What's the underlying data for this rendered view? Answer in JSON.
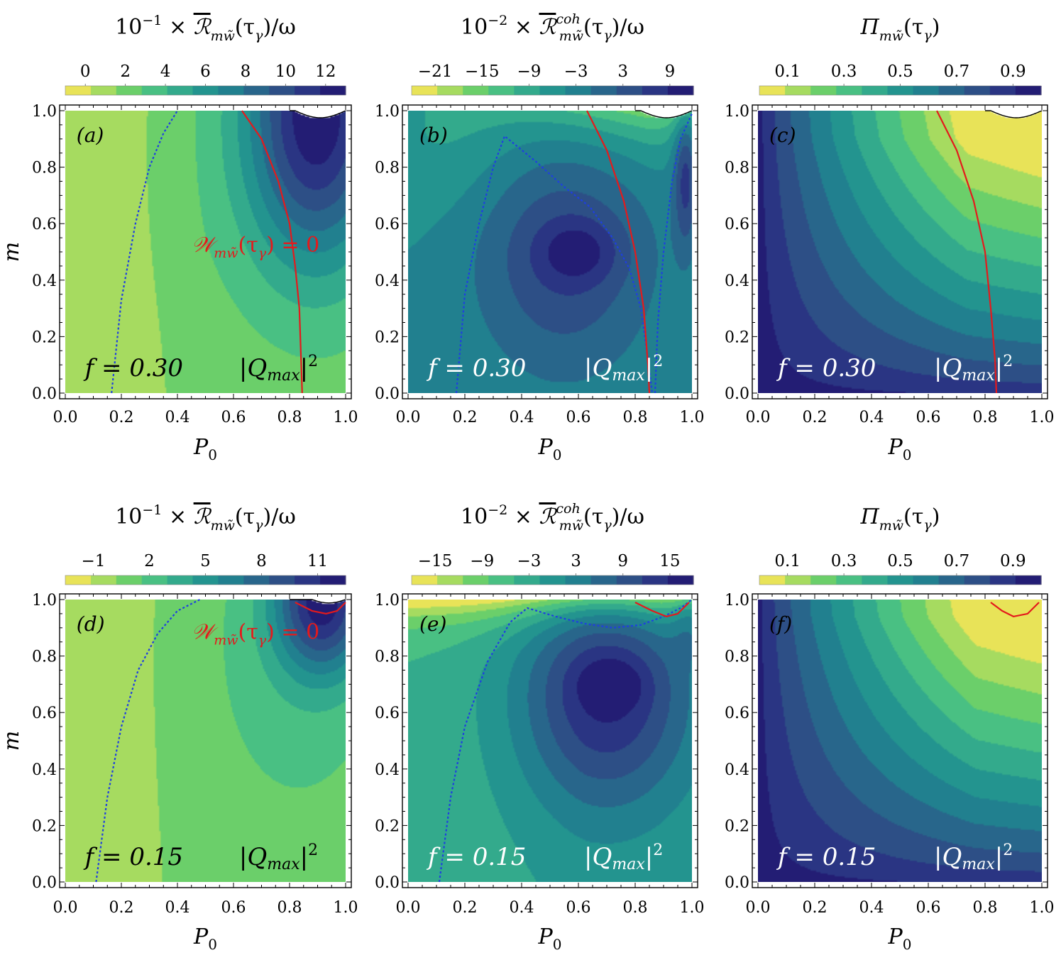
{
  "chart_data": [
    {
      "panel": "a",
      "type": "heatmap",
      "label": "(a)",
      "title": "10^{-1} × R̄_{mw̃}(τ_γ)/ω",
      "title_parts": {
        "prefix": "10",
        "exp": "−1",
        "mid": " × ",
        "sym": "ℛ",
        "sub": "mw̃",
        "sup": "",
        "suffix": "(τ",
        "suffix_sub": "γ",
        "suffix_end": ")/ω"
      },
      "colorbar": {
        "ticks": [
          "0",
          "2",
          "4",
          "6",
          "8",
          "10",
          "12"
        ],
        "tick_values": [
          0,
          2,
          4,
          6,
          8,
          10,
          12
        ],
        "range": [
          -1,
          13
        ]
      },
      "xlabel": "P",
      "xlabel_sub": "0",
      "ylabel": "m",
      "xlim": [
        0,
        1
      ],
      "ylim": [
        0,
        1
      ],
      "xticks": [
        "0.0",
        "0.2",
        "0.4",
        "0.6",
        "0.8",
        "1.0"
      ],
      "yticks": [
        "0.0",
        "0.2",
        "0.4",
        "0.6",
        "0.8",
        "1.0"
      ],
      "f_text": "f = 0.30",
      "q_text": "|Q",
      "q_sub": "max",
      "q_sup": "2",
      "curve_label": "W_{mw̃}(τ_γ) = 0",
      "curve_label_parts": {
        "sym": "𝒲",
        "sub": "mw̃",
        "rest": "(τ",
        "rest_sub": "γ",
        "end": ") = 0"
      },
      "show_curve_label": true
    },
    {
      "panel": "b",
      "type": "heatmap",
      "label": "(b)",
      "title": "10^{-2} × R̄^{coh}_{mw̃}(τ_γ)/ω",
      "title_parts": {
        "prefix": "10",
        "exp": "−2",
        "mid": " × ",
        "sym": "ℛ",
        "sub": "mw̃",
        "sup": "coh",
        "suffix": "(τ",
        "suffix_sub": "γ",
        "suffix_end": ")/ω"
      },
      "colorbar": {
        "ticks": [
          "−21",
          "−15",
          "−9",
          "−3",
          "3",
          "9"
        ],
        "tick_values": [
          -21,
          -15,
          -9,
          -3,
          3,
          9
        ],
        "range": [
          -24,
          12
        ]
      },
      "xlabel": "P",
      "xlabel_sub": "0",
      "ylabel": "",
      "xlim": [
        0,
        1
      ],
      "ylim": [
        0,
        1
      ],
      "xticks": [
        "0.0",
        "0.2",
        "0.4",
        "0.6",
        "0.8",
        "1.0"
      ],
      "yticks": [
        "0.0",
        "0.2",
        "0.4",
        "0.6",
        "0.8",
        "1.0"
      ],
      "f_text": "f = 0.30",
      "q_text": "|Q",
      "q_sub": "max",
      "q_sup": "2",
      "show_curve_label": false
    },
    {
      "panel": "c",
      "type": "heatmap",
      "label": "(c)",
      "title": "Π_{mw̃}(τ_γ)",
      "title_parts": {
        "prefix": "",
        "exp": "",
        "mid": "",
        "sym": "Π",
        "sub": "mw̃",
        "sup": "",
        "suffix": "(τ",
        "suffix_sub": "γ",
        "suffix_end": ")"
      },
      "colorbar": {
        "ticks": [
          "0.1",
          "0.3",
          "0.5",
          "0.7",
          "0.9"
        ],
        "tick_values": [
          0.1,
          0.3,
          0.5,
          0.7,
          0.9
        ],
        "range": [
          0,
          1
        ]
      },
      "xlabel": "P",
      "xlabel_sub": "0",
      "ylabel": "",
      "xlim": [
        0,
        1
      ],
      "ylim": [
        0,
        1
      ],
      "xticks": [
        "0.0",
        "0.2",
        "0.4",
        "0.6",
        "0.8",
        "1.0"
      ],
      "yticks": [
        "0.0",
        "0.2",
        "0.4",
        "0.6",
        "0.8",
        "1.0"
      ],
      "f_text": "f = 0.30",
      "q_text": "|Q",
      "q_sub": "max",
      "q_sup": "2",
      "show_curve_label": false
    },
    {
      "panel": "d",
      "type": "heatmap",
      "label": "(d)",
      "title": "10^{-1} × R̄_{mw̃}(τ_γ)/ω",
      "title_parts": {
        "prefix": "10",
        "exp": "−1",
        "mid": " × ",
        "sym": "ℛ",
        "sub": "mw̃",
        "sup": "",
        "suffix": "(τ",
        "suffix_sub": "γ",
        "suffix_end": ")/ω"
      },
      "colorbar": {
        "ticks": [
          "−1",
          "2",
          "5",
          "8",
          "11"
        ],
        "tick_values": [
          -1,
          2,
          5,
          8,
          11
        ],
        "range": [
          -2.5,
          12.5
        ]
      },
      "xlabel": "P",
      "xlabel_sub": "0",
      "ylabel": "m",
      "xlim": [
        0,
        1
      ],
      "ylim": [
        0,
        1
      ],
      "xticks": [
        "0.0",
        "0.2",
        "0.4",
        "0.6",
        "0.8",
        "1.0"
      ],
      "yticks": [
        "0.0",
        "0.2",
        "0.4",
        "0.6",
        "0.8",
        "1.0"
      ],
      "f_text": "f = 0.15",
      "q_text": "|Q",
      "q_sub": "max",
      "q_sup": "2",
      "curve_label": "W_{mw̃}(τ_γ) = 0",
      "curve_label_parts": {
        "sym": "𝒲",
        "sub": "mw̃",
        "rest": "(τ",
        "rest_sub": "γ",
        "end": ") = 0"
      },
      "show_curve_label": true
    },
    {
      "panel": "e",
      "type": "heatmap",
      "label": "(e)",
      "title": "10^{-2} × R̄^{coh}_{mw̃}(τ_γ)/ω",
      "title_parts": {
        "prefix": "10",
        "exp": "−2",
        "mid": " × ",
        "sym": "ℛ",
        "sub": "mw̃",
        "sup": "coh",
        "suffix": "(τ",
        "suffix_sub": "γ",
        "suffix_end": ")/ω"
      },
      "colorbar": {
        "ticks": [
          "−15",
          "−9",
          "−3",
          "3",
          "9",
          "15"
        ],
        "tick_values": [
          -15,
          -9,
          -3,
          3,
          9,
          15
        ],
        "range": [
          -18,
          18
        ]
      },
      "xlabel": "P",
      "xlabel_sub": "0",
      "ylabel": "",
      "xlim": [
        0,
        1
      ],
      "ylim": [
        0,
        1
      ],
      "xticks": [
        "0.0",
        "0.2",
        "0.4",
        "0.6",
        "0.8",
        "1.0"
      ],
      "yticks": [
        "0.0",
        "0.2",
        "0.4",
        "0.6",
        "0.8",
        "1.0"
      ],
      "f_text": "f = 0.15",
      "q_text": "|Q",
      "q_sub": "max",
      "q_sup": "2",
      "show_curve_label": false
    },
    {
      "panel": "f",
      "type": "heatmap",
      "label": "(f)",
      "title": "Π_{mw̃}(τ_γ)",
      "title_parts": {
        "prefix": "",
        "exp": "",
        "mid": "",
        "sym": "Π",
        "sub": "mw̃",
        "sup": "",
        "suffix": "(τ",
        "suffix_sub": "γ",
        "suffix_end": ")"
      },
      "colorbar": {
        "ticks": [
          "0.1",
          "0.3",
          "0.5",
          "0.7",
          "0.9"
        ],
        "tick_values": [
          0.1,
          0.3,
          0.5,
          0.7,
          0.9
        ],
        "range": [
          0,
          1
        ]
      },
      "xlabel": "P",
      "xlabel_sub": "0",
      "ylabel": "",
      "xlim": [
        0,
        1
      ],
      "ylim": [
        0,
        1
      ],
      "xticks": [
        "0.0",
        "0.2",
        "0.4",
        "0.6",
        "0.8",
        "1.0"
      ],
      "yticks": [
        "0.0",
        "0.2",
        "0.4",
        "0.6",
        "0.8",
        "1.0"
      ],
      "f_text": "f = 0.15",
      "q_text": "|Q",
      "q_sub": "max",
      "q_sup": "2",
      "show_curve_label": false
    }
  ],
  "colors": {
    "palette": [
      "#e8e358",
      "#a6db60",
      "#6bcf6a",
      "#49c083",
      "#33aa8c",
      "#23948f",
      "#21808f",
      "#28668b",
      "#2d4f86",
      "#2a3583",
      "#231d74"
    ],
    "curve_red": "#e41a1c",
    "curve_blue": "#1f3fe0"
  }
}
